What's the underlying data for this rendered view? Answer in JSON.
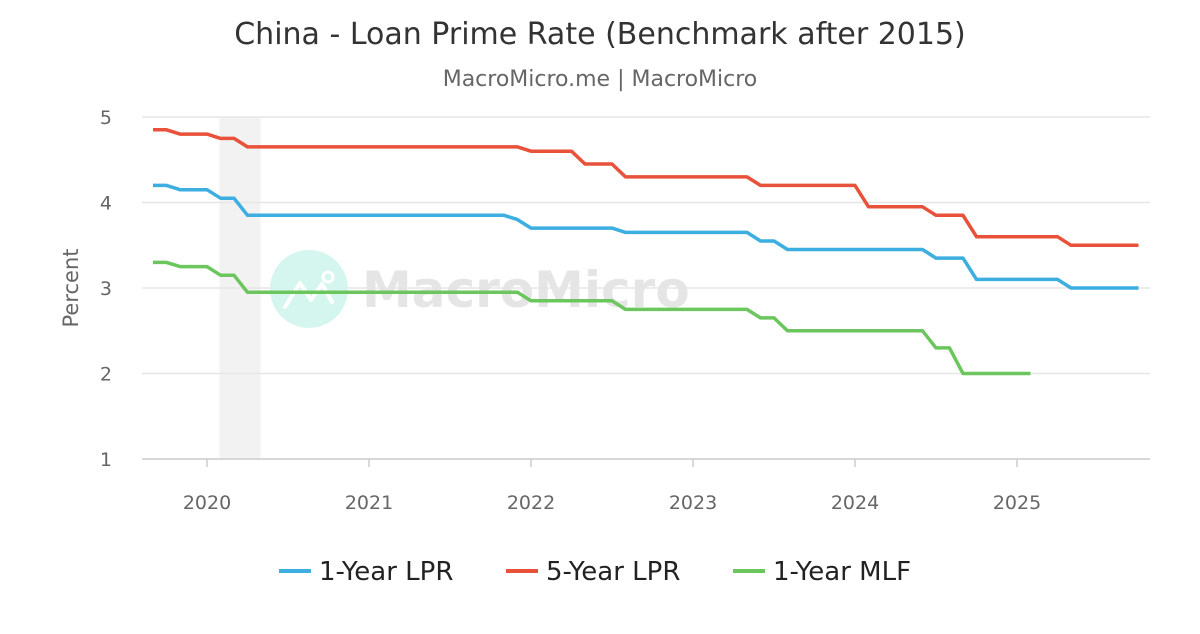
{
  "chart_data": {
    "type": "line",
    "title": "China - Loan Prime Rate (Benchmark after 2015)",
    "subtitle": "MacroMicro.me | MacroMicro",
    "ylabel": "Percent",
    "xlabel": "",
    "ylim": [
      1,
      5
    ],
    "yticks": [
      "1",
      "2",
      "3",
      "4",
      "5"
    ],
    "xticks": [
      "2020",
      "2021",
      "2022",
      "2023",
      "2024",
      "2025"
    ],
    "x_start": "2019-09",
    "x_end": "2025-10",
    "frequency": "monthly",
    "shaded_period": [
      "2020-02",
      "2020-04"
    ],
    "grid": true,
    "legend_position": "bottom",
    "watermark": "MacroMicro",
    "series": [
      {
        "name": "1-Year LPR",
        "color": "#3caee0",
        "values": [
          4.2,
          4.2,
          4.15,
          4.15,
          4.15,
          4.05,
          4.05,
          3.85,
          3.85,
          3.85,
          3.85,
          3.85,
          3.85,
          3.85,
          3.85,
          3.85,
          3.85,
          3.85,
          3.85,
          3.85,
          3.85,
          3.85,
          3.85,
          3.85,
          3.85,
          3.85,
          3.85,
          3.8,
          3.7,
          3.7,
          3.7,
          3.7,
          3.7,
          3.7,
          3.7,
          3.65,
          3.65,
          3.65,
          3.65,
          3.65,
          3.65,
          3.65,
          3.65,
          3.65,
          3.65,
          3.55,
          3.55,
          3.45,
          3.45,
          3.45,
          3.45,
          3.45,
          3.45,
          3.45,
          3.45,
          3.45,
          3.45,
          3.45,
          3.35,
          3.35,
          3.35,
          3.1,
          3.1,
          3.1,
          3.1,
          3.1,
          3.1,
          3.1,
          3.0,
          3.0,
          3.0,
          3.0,
          3.0,
          3.0
        ]
      },
      {
        "name": "5-Year LPR",
        "color": "#e8513a",
        "values": [
          4.85,
          4.85,
          4.8,
          4.8,
          4.8,
          4.75,
          4.75,
          4.65,
          4.65,
          4.65,
          4.65,
          4.65,
          4.65,
          4.65,
          4.65,
          4.65,
          4.65,
          4.65,
          4.65,
          4.65,
          4.65,
          4.65,
          4.65,
          4.65,
          4.65,
          4.65,
          4.65,
          4.65,
          4.6,
          4.6,
          4.6,
          4.6,
          4.45,
          4.45,
          4.45,
          4.3,
          4.3,
          4.3,
          4.3,
          4.3,
          4.3,
          4.3,
          4.3,
          4.3,
          4.3,
          4.2,
          4.2,
          4.2,
          4.2,
          4.2,
          4.2,
          4.2,
          4.2,
          3.95,
          3.95,
          3.95,
          3.95,
          3.95,
          3.85,
          3.85,
          3.85,
          3.6,
          3.6,
          3.6,
          3.6,
          3.6,
          3.6,
          3.6,
          3.5,
          3.5,
          3.5,
          3.5,
          3.5,
          3.5
        ]
      },
      {
        "name": "1-Year MLF",
        "color": "#6cc65e",
        "values": [
          3.3,
          3.3,
          3.25,
          3.25,
          3.25,
          3.15,
          3.15,
          2.95,
          2.95,
          2.95,
          2.95,
          2.95,
          2.95,
          2.95,
          2.95,
          2.95,
          2.95,
          2.95,
          2.95,
          2.95,
          2.95,
          2.95,
          2.95,
          2.95,
          2.95,
          2.95,
          2.95,
          2.95,
          2.85,
          2.85,
          2.85,
          2.85,
          2.85,
          2.85,
          2.85,
          2.75,
          2.75,
          2.75,
          2.75,
          2.75,
          2.75,
          2.75,
          2.75,
          2.75,
          2.75,
          2.65,
          2.65,
          2.5,
          2.5,
          2.5,
          2.5,
          2.5,
          2.5,
          2.5,
          2.5,
          2.5,
          2.5,
          2.5,
          2.3,
          2.3,
          2.0,
          2.0,
          2.0,
          2.0,
          2.0,
          2.0,
          null,
          null,
          null,
          null,
          null,
          null,
          null,
          null
        ]
      }
    ]
  }
}
